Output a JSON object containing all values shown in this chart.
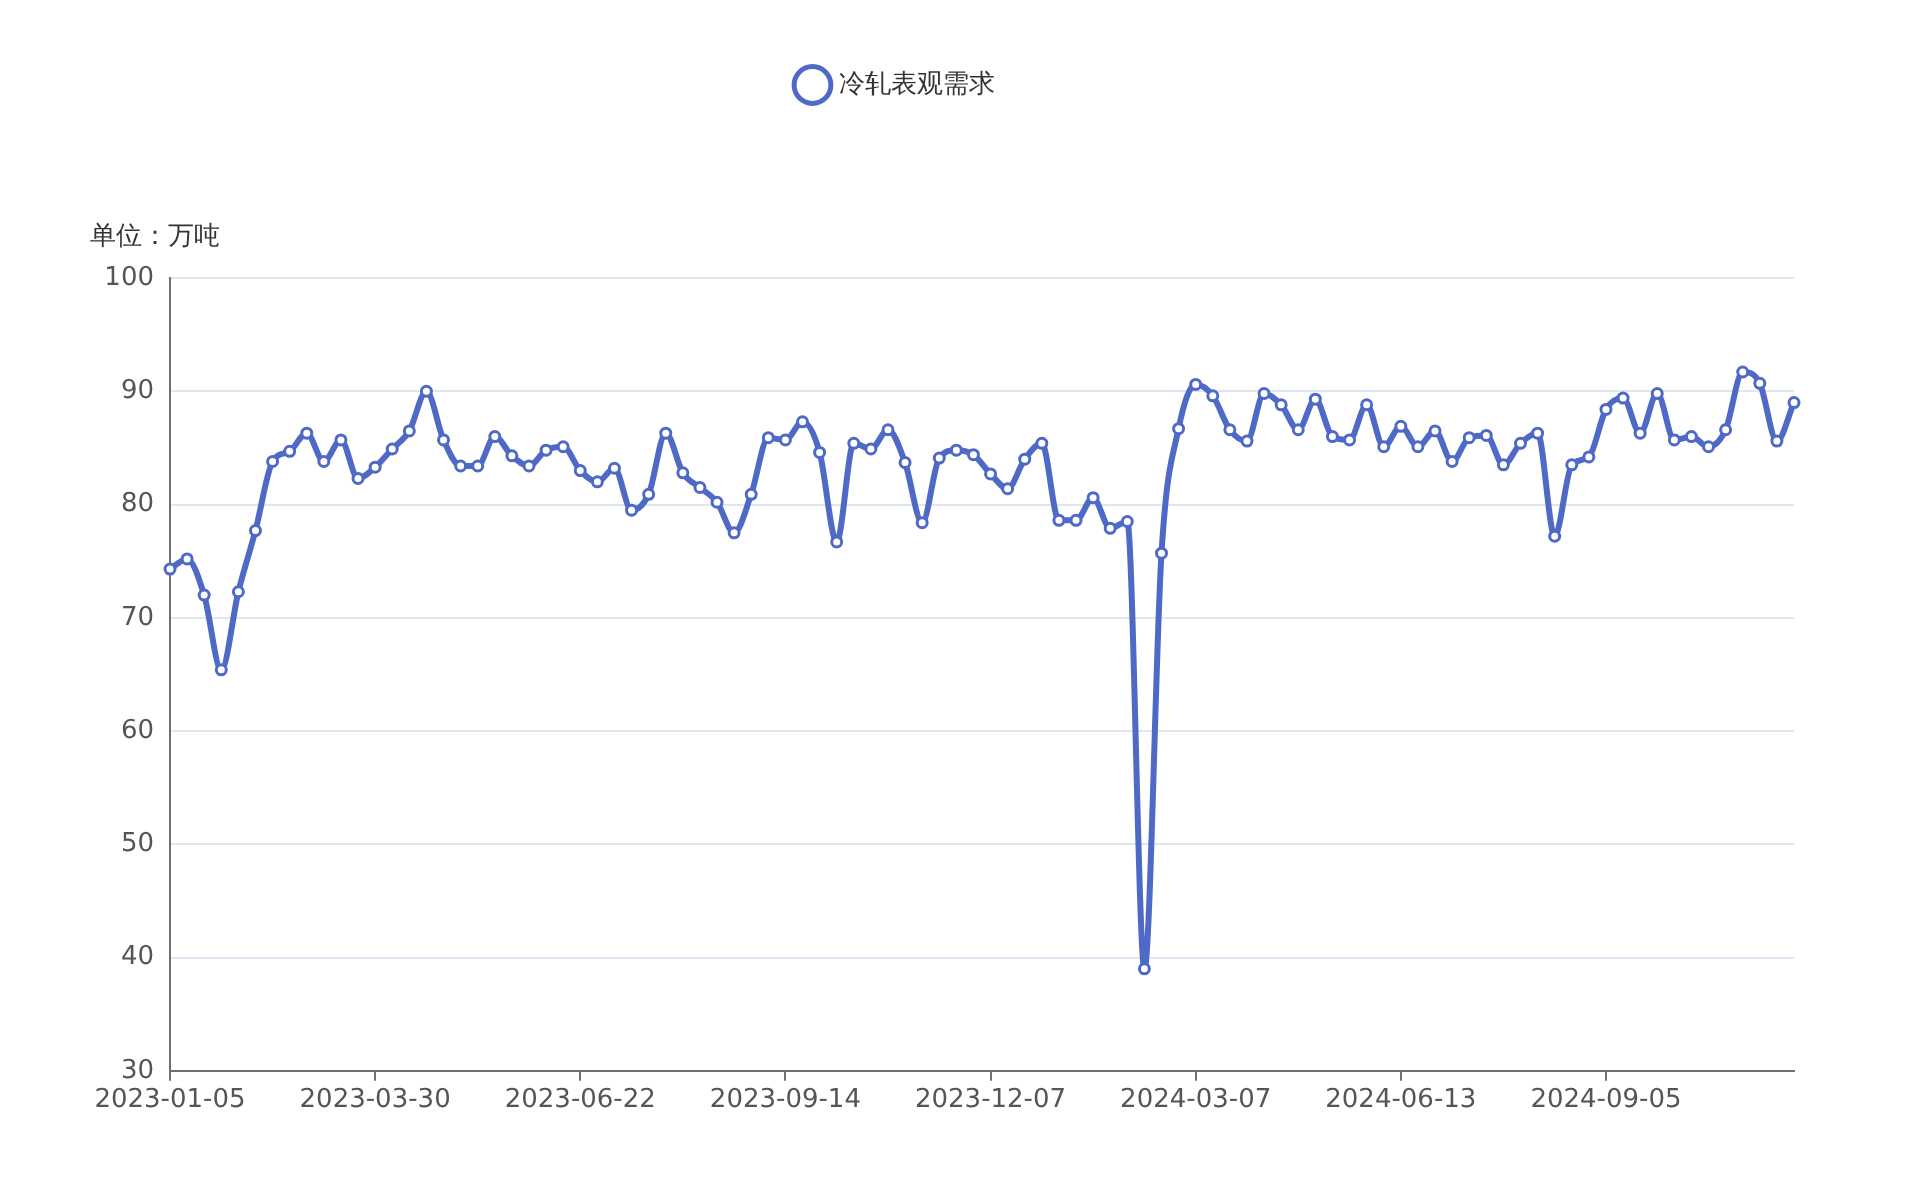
{
  "chart_data": {
    "type": "line",
    "ylabel": "单位：万吨",
    "categories": [
      "2023-01-05",
      null,
      null,
      null,
      null,
      null,
      null,
      null,
      null,
      null,
      null,
      null,
      "2023-03-30",
      null,
      null,
      null,
      null,
      null,
      null,
      null,
      null,
      null,
      null,
      null,
      "2023-06-22",
      null,
      null,
      null,
      null,
      null,
      null,
      null,
      null,
      null,
      null,
      null,
      "2023-09-14",
      null,
      null,
      null,
      null,
      null,
      null,
      null,
      null,
      null,
      null,
      null,
      "2023-12-07",
      null,
      null,
      null,
      null,
      null,
      null,
      null,
      null,
      null,
      null,
      null,
      "2024-03-07",
      null,
      null,
      null,
      null,
      null,
      null,
      null,
      null,
      null,
      null,
      null,
      "2024-06-13",
      null,
      null,
      null,
      null,
      null,
      null,
      null,
      null,
      null,
      null,
      null,
      "2024-09-05",
      null,
      null,
      null,
      null,
      null,
      null,
      null,
      null,
      null,
      null,
      null
    ],
    "series": [
      {
        "name": "冷轧表观需求",
        "color": "#4e6ac6",
        "values": [
          74.3,
          75.2,
          72.0,
          65.4,
          72.3,
          77.7,
          83.8,
          84.7,
          86.3,
          83.8,
          85.7,
          82.3,
          83.3,
          84.9,
          86.5,
          90.0,
          85.7,
          83.4,
          83.4,
          86.0,
          84.3,
          83.4,
          84.8,
          85.1,
          83.0,
          82.0,
          83.2,
          79.5,
          80.9,
          86.3,
          82.8,
          81.5,
          80.2,
          77.5,
          80.9,
          85.9,
          85.7,
          87.3,
          84.6,
          76.7,
          85.4,
          84.9,
          86.6,
          83.7,
          78.4,
          84.1,
          84.8,
          84.4,
          82.7,
          81.4,
          84.0,
          85.4,
          78.6,
          78.6,
          80.6,
          77.9,
          78.5,
          39.0,
          75.7,
          86.7,
          90.6,
          89.6,
          86.6,
          85.6,
          89.8,
          88.8,
          86.6,
          89.3,
          86.0,
          85.7,
          88.8,
          85.1,
          86.9,
          85.1,
          86.5,
          83.8,
          85.9,
          86.1,
          83.5,
          85.4,
          86.3,
          77.2,
          83.5,
          84.2,
          88.4,
          89.4,
          86.3,
          89.8,
          85.7,
          86.0,
          85.1,
          86.6,
          91.7,
          90.7,
          85.6,
          89.0
        ]
      }
    ],
    "ylim": [
      30,
      100
    ],
    "yticks": [
      30,
      40,
      50,
      60,
      70,
      80,
      90,
      100
    ],
    "grid": "y",
    "legend": "top",
    "marker": "circle",
    "line_style": "solid"
  }
}
